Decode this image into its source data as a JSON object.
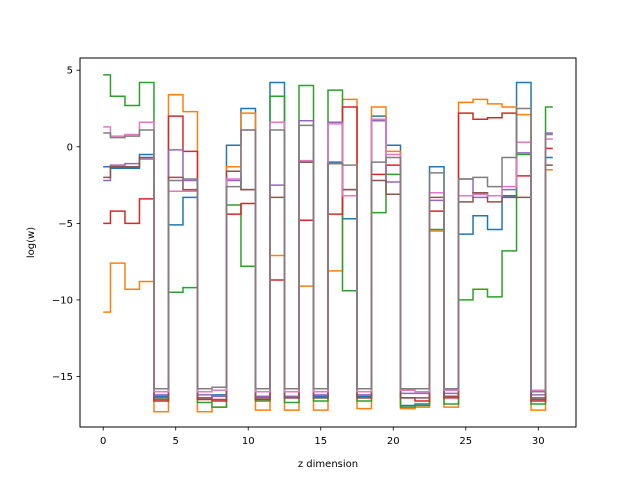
{
  "chart_data": {
    "type": "line",
    "drawstyle": "steps-mid",
    "title": "",
    "xlabel": "z dimension",
    "ylabel": "log(w)",
    "xlim": [
      -1.6,
      32.6
    ],
    "ylim": [
      -18.3,
      5.8
    ],
    "xticks": [
      0,
      5,
      10,
      15,
      20,
      25,
      30
    ],
    "yticks": [
      5,
      0,
      -5,
      -10,
      -15
    ],
    "ytick_labels": [
      "5",
      "0",
      "−5",
      "−10",
      "−15"
    ],
    "grid": false,
    "legend": "none",
    "x": [
      0,
      1,
      2,
      3,
      4,
      5,
      6,
      7,
      8,
      9,
      10,
      11,
      12,
      13,
      14,
      15,
      16,
      17,
      18,
      19,
      20,
      21,
      22,
      23,
      24,
      25,
      26,
      27,
      28,
      29,
      30,
      31
    ],
    "series": [
      {
        "color": "#1f77b4",
        "values": [
          -1.3,
          -1.4,
          -1.4,
          -0.5,
          -16.3,
          -5.1,
          -3.3,
          -16.4,
          -16.2,
          0.1,
          2.5,
          -16.3,
          4.2,
          -16.3,
          -1.0,
          -16.3,
          -1.0,
          -4.7,
          -16.3,
          2.0,
          0.1,
          -16.9,
          -16.8,
          -1.3,
          -16.3,
          -5.7,
          -4.5,
          -5.4,
          -3.2,
          4.2,
          -16.5,
          -0.7
        ]
      },
      {
        "color": "#ff7f0e",
        "values": [
          -10.8,
          -7.6,
          -9.3,
          -8.8,
          -17.3,
          3.4,
          2.3,
          -17.3,
          -17.0,
          -1.3,
          2.2,
          -17.2,
          -7.1,
          -17.2,
          -9.1,
          -17.2,
          -8.1,
          3.1,
          -17.1,
          2.6,
          -0.3,
          -17.1,
          -17.0,
          -5.5,
          -17.0,
          2.9,
          3.1,
          2.8,
          2.6,
          2.1,
          -17.2,
          -1.5
        ]
      },
      {
        "color": "#2ca02c",
        "values": [
          4.7,
          3.3,
          2.7,
          4.2,
          -16.5,
          -9.5,
          -9.2,
          -16.7,
          -17.0,
          -3.8,
          -7.8,
          -16.6,
          3.3,
          -16.7,
          4.0,
          -16.6,
          3.7,
          -9.4,
          -16.6,
          -4.3,
          -1.8,
          -17.0,
          -16.9,
          -5.4,
          -16.8,
          -10.0,
          -9.3,
          -9.8,
          -6.8,
          -0.5,
          -16.8,
          2.6
        ]
      },
      {
        "color": "#d62728",
        "values": [
          -5.0,
          -4.2,
          -5.0,
          -3.4,
          -16.6,
          2.0,
          -0.3,
          -16.5,
          -16.6,
          -4.4,
          -3.7,
          -16.5,
          -8.7,
          -16.4,
          -4.8,
          -16.4,
          -4.4,
          2.6,
          -16.4,
          -1.8,
          -1.2,
          -16.4,
          -16.6,
          -4.2,
          -16.4,
          2.2,
          1.8,
          1.9,
          2.2,
          -1.9,
          -16.6,
          -0.1
        ]
      },
      {
        "color": "#9467bd",
        "values": [
          -2.2,
          -1.2,
          -1.1,
          -0.8,
          -16.2,
          -0.2,
          -2.2,
          -16.2,
          -16.3,
          -2.2,
          -2.8,
          -16.3,
          -2.5,
          -16.3,
          1.7,
          -16.2,
          1.6,
          -2.8,
          -16.2,
          1.7,
          -2.3,
          -16.1,
          -16.1,
          -3.5,
          -16.1,
          -2.1,
          -3.3,
          -3.2,
          -2.8,
          -0.4,
          -16.2,
          0.9
        ]
      },
      {
        "color": "#8c564b",
        "values": [
          -2.0,
          -1.3,
          -1.3,
          -0.7,
          -16.4,
          -2.0,
          -2.8,
          -16.4,
          -16.5,
          -1.6,
          -2.8,
          -16.4,
          -3.3,
          -16.4,
          -1.0,
          -16.4,
          -1.1,
          -2.8,
          -16.4,
          -2.2,
          -3.1,
          -16.4,
          -16.4,
          -3.3,
          -16.3,
          -3.6,
          -3.0,
          -3.6,
          -3.3,
          -3.3,
          -16.4,
          -1.2
        ]
      },
      {
        "color": "#e377c2",
        "values": [
          1.3,
          0.7,
          0.8,
          1.6,
          -16.0,
          -2.9,
          -2.9,
          -16.0,
          -15.9,
          -2.1,
          1.1,
          -16.0,
          1.6,
          -16.0,
          -0.9,
          -16.0,
          1.5,
          -3.2,
          -16.0,
          1.8,
          -0.5,
          -15.9,
          -16.0,
          -3.0,
          -15.9,
          -3.2,
          -3.1,
          -3.2,
          -2.6,
          0.3,
          -15.9,
          0.5
        ]
      },
      {
        "color": "#7f7f7f",
        "values": [
          0.9,
          0.6,
          0.7,
          1.1,
          -15.8,
          -2.2,
          -2.1,
          -15.8,
          -15.7,
          -2.6,
          1.1,
          -15.8,
          1.1,
          -15.8,
          1.4,
          -15.8,
          -1.1,
          -1.2,
          -15.8,
          -1.0,
          -0.7,
          -15.8,
          -15.8,
          -1.7,
          -15.8,
          -2.1,
          -2.0,
          -2.6,
          -0.7,
          2.5,
          -16.0,
          0.8
        ]
      }
    ]
  }
}
